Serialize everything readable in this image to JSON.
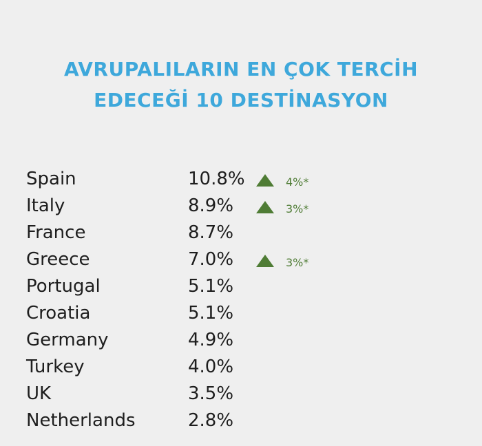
{
  "header": {
    "title_lines": [
      "AVRUPALILARIN EN ÇOK TERCİH",
      "EDECEĞİ 10 DESTİNASYON"
    ]
  },
  "table": {
    "rows": [
      {
        "country": "Spain",
        "share": "10.8%",
        "change": "4%*"
      },
      {
        "country": "Italy",
        "share": "8.9%",
        "change": "3%*"
      },
      {
        "country": "France",
        "share": "8.7%"
      },
      {
        "country": "Greece",
        "share": "7.0%",
        "change": "3%*"
      },
      {
        "country": "Portugal",
        "share": "5.1%"
      },
      {
        "country": "Croatia",
        "share": "5.1%"
      },
      {
        "country": "Germany",
        "share": "4.9%"
      },
      {
        "country": "Turkey",
        "share": "4.0%"
      },
      {
        "country": "UK",
        "share": "3.5%"
      },
      {
        "country": "Netherlands",
        "share": "2.8%"
      }
    ]
  }
}
